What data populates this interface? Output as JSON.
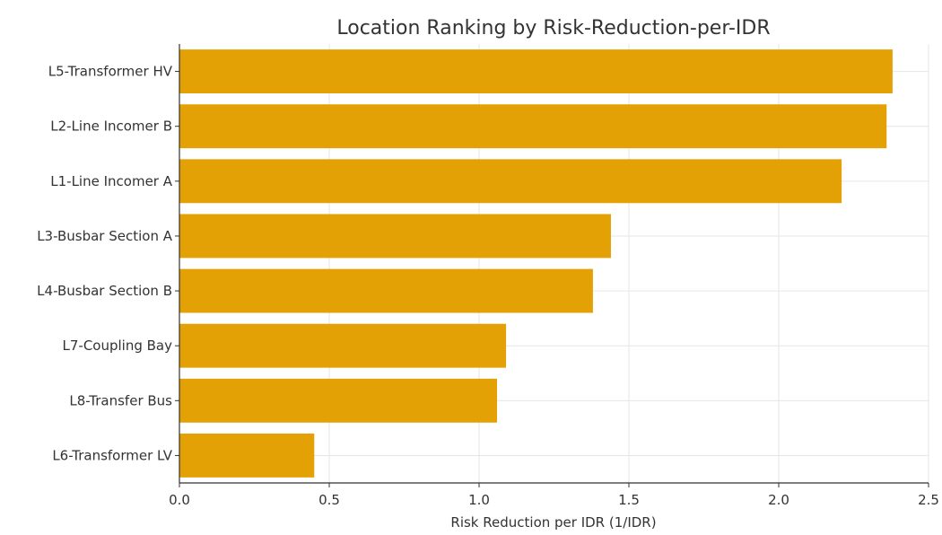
{
  "chart_data": {
    "type": "bar",
    "orientation": "horizontal",
    "title": "Location Ranking by Risk-Reduction-per-IDR",
    "xlabel": "Risk Reduction per IDR (1/IDR)",
    "ylabel": "",
    "categories": [
      "L5-Transformer HV",
      "L2-Line Incomer B",
      "L1-Line Incomer A",
      "L3-Busbar Section A",
      "L4-Busbar Section B",
      "L7-Coupling Bay",
      "L8-Transfer Bus",
      "L6-Transformer LV"
    ],
    "values": [
      2.38,
      2.36,
      2.21,
      1.44,
      1.38,
      1.09,
      1.06,
      0.45
    ],
    "xlim": [
      0,
      2.5
    ],
    "xticks": [
      0.0,
      0.5,
      1.0,
      1.5,
      2.0,
      2.5
    ],
    "xtick_labels": [
      "0.0",
      "0.5",
      "1.0",
      "1.5",
      "2.0",
      "2.5"
    ],
    "grid": true,
    "bar_color": "#E3A106"
  }
}
